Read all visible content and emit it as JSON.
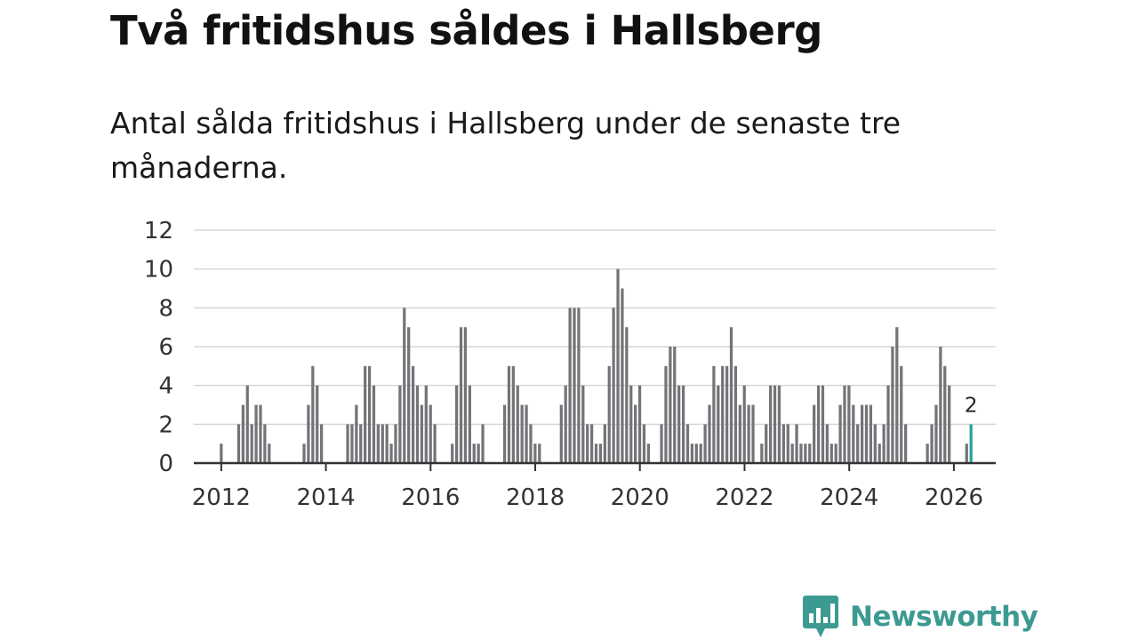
{
  "headline": "Två fritidshus såldes i Hallsberg",
  "subtitle": "Antal sålda fritidshus i Hallsberg under de senaste tre månaderna.",
  "brand": {
    "name": "Newsworthy",
    "icon": "newsworthy-logo-icon",
    "color": "#3c9a92"
  },
  "colors": {
    "bar": "#747378",
    "highlight": "#27a39a",
    "grid": "#d6d6d6",
    "axis": "#333333"
  },
  "chart_data": {
    "type": "bar",
    "title": "Antal sålda fritidshus i Hallsberg",
    "xlabel": "",
    "ylabel": "",
    "x_start": 2011.5,
    "x_step": 0.0833,
    "xlim": [
      2011.0,
      2026.8
    ],
    "ylim": [
      0,
      12
    ],
    "yticks": [
      0,
      2,
      4,
      6,
      8,
      10,
      12
    ],
    "xticks": [
      2012,
      2014,
      2016,
      2018,
      2020,
      2022,
      2024,
      2026
    ],
    "grid": true,
    "values": [
      0,
      0,
      0,
      0,
      0,
      0,
      1,
      0,
      0,
      0,
      2,
      3,
      4,
      2,
      3,
      3,
      2,
      1,
      0,
      0,
      0,
      0,
      0,
      0,
      0,
      1,
      3,
      5,
      4,
      2,
      0,
      0,
      0,
      0,
      0,
      2,
      2,
      3,
      2,
      5,
      5,
      4,
      2,
      2,
      2,
      1,
      2,
      4,
      8,
      7,
      5,
      4,
      3,
      4,
      3,
      2,
      0,
      0,
      0,
      1,
      4,
      7,
      7,
      4,
      1,
      1,
      2,
      0,
      0,
      0,
      0,
      3,
      5,
      5,
      4,
      3,
      3,
      2,
      1,
      1,
      0,
      0,
      0,
      0,
      3,
      4,
      8,
      8,
      8,
      4,
      2,
      2,
      1,
      1,
      2,
      5,
      8,
      10,
      9,
      7,
      4,
      3,
      4,
      2,
      1,
      0,
      0,
      2,
      5,
      6,
      6,
      4,
      4,
      2,
      1,
      1,
      1,
      2,
      3,
      5,
      4,
      5,
      5,
      7,
      5,
      3,
      4,
      3,
      3,
      0,
      1,
      2,
      4,
      4,
      4,
      2,
      2,
      1,
      2,
      1,
      1,
      1,
      3,
      4,
      4,
      2,
      1,
      1,
      3,
      4,
      4,
      3,
      2,
      3,
      3,
      3,
      2,
      1,
      2,
      4,
      6,
      7,
      5,
      2,
      0,
      0,
      0,
      0,
      1,
      2,
      3,
      6,
      5,
      4,
      0,
      0,
      0,
      1,
      2
    ],
    "highlight": {
      "index": 178,
      "value": 2,
      "label": "2"
    }
  }
}
